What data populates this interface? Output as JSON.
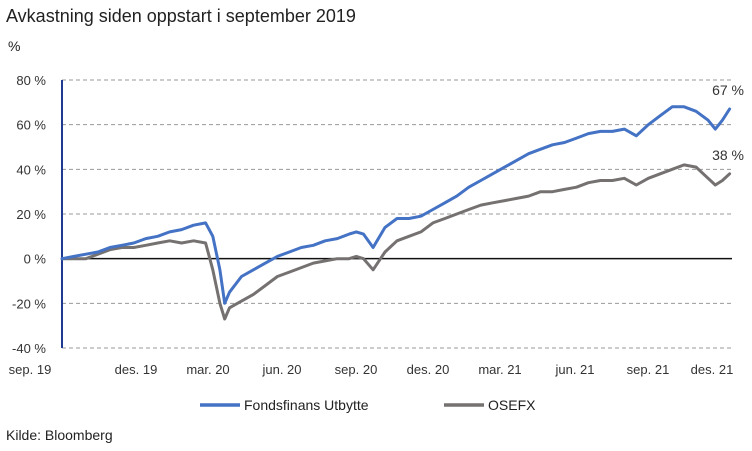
{
  "chart_data": {
    "type": "line",
    "title": "Avkastning siden oppstart i september 2019",
    "ylabel": "%",
    "ylim": [
      -40,
      80
    ],
    "yticks": [
      -40,
      -20,
      0,
      20,
      40,
      60,
      80
    ],
    "ytick_labels": [
      "-40 %",
      "-20 %",
      "0 %",
      "20 %",
      "40 %",
      "60 %",
      "80 %"
    ],
    "xticks": [
      "sep. 19",
      "des. 19",
      "mar. 20",
      "jun. 20",
      "sep. 20",
      "des. 20",
      "mar. 21",
      "jun. 21",
      "sep. 21",
      "des. 21"
    ],
    "grid": true,
    "legend_position": "bottom",
    "x_months": [
      0,
      0.5,
      1,
      1.5,
      2,
      2.5,
      3,
      3.5,
      4,
      4.5,
      5,
      5.5,
      6,
      6.3,
      6.6,
      6.8,
      7,
      7.5,
      8,
      8.5,
      9,
      9.5,
      10,
      10.5,
      11,
      11.5,
      12,
      12.3,
      12.6,
      13,
      13.5,
      14,
      14.5,
      15,
      15.5,
      16,
      16.5,
      17,
      17.5,
      18,
      18.5,
      19,
      19.5,
      20,
      20.5,
      21,
      21.5,
      22,
      22.5,
      23,
      23.5,
      24,
      24.5,
      25,
      25.5,
      26,
      26.5,
      27,
      27.3,
      27.6,
      27.9
    ],
    "series": [
      {
        "name": "Fondsfinans Utbytte",
        "color": "#4472c4",
        "end_label": "67 %",
        "values": [
          0,
          1,
          2,
          3,
          5,
          6,
          7,
          9,
          10,
          12,
          13,
          15,
          16,
          10,
          -5,
          -20,
          -15,
          -8,
          -5,
          -2,
          1,
          3,
          5,
          6,
          8,
          9,
          11,
          12,
          11,
          5,
          14,
          18,
          18,
          19,
          22,
          25,
          28,
          32,
          35,
          38,
          41,
          44,
          47,
          49,
          51,
          52,
          54,
          56,
          57,
          57,
          58,
          55,
          60,
          64,
          68,
          68,
          66,
          62,
          58,
          62,
          67
        ]
      },
      {
        "name": "OSEFX",
        "color": "#767171",
        "end_label": "38 %",
        "values": [
          0,
          0,
          0,
          2,
          4,
          5,
          5,
          6,
          7,
          8,
          7,
          8,
          7,
          -5,
          -20,
          -27,
          -22,
          -19,
          -16,
          -12,
          -8,
          -6,
          -4,
          -2,
          -1,
          0,
          0,
          1,
          0,
          -5,
          3,
          8,
          10,
          12,
          16,
          18,
          20,
          22,
          24,
          25,
          26,
          27,
          28,
          30,
          30,
          31,
          32,
          34,
          35,
          35,
          36,
          33,
          36,
          38,
          40,
          42,
          41,
          36,
          33,
          35,
          38
        ]
      }
    ]
  }
}
